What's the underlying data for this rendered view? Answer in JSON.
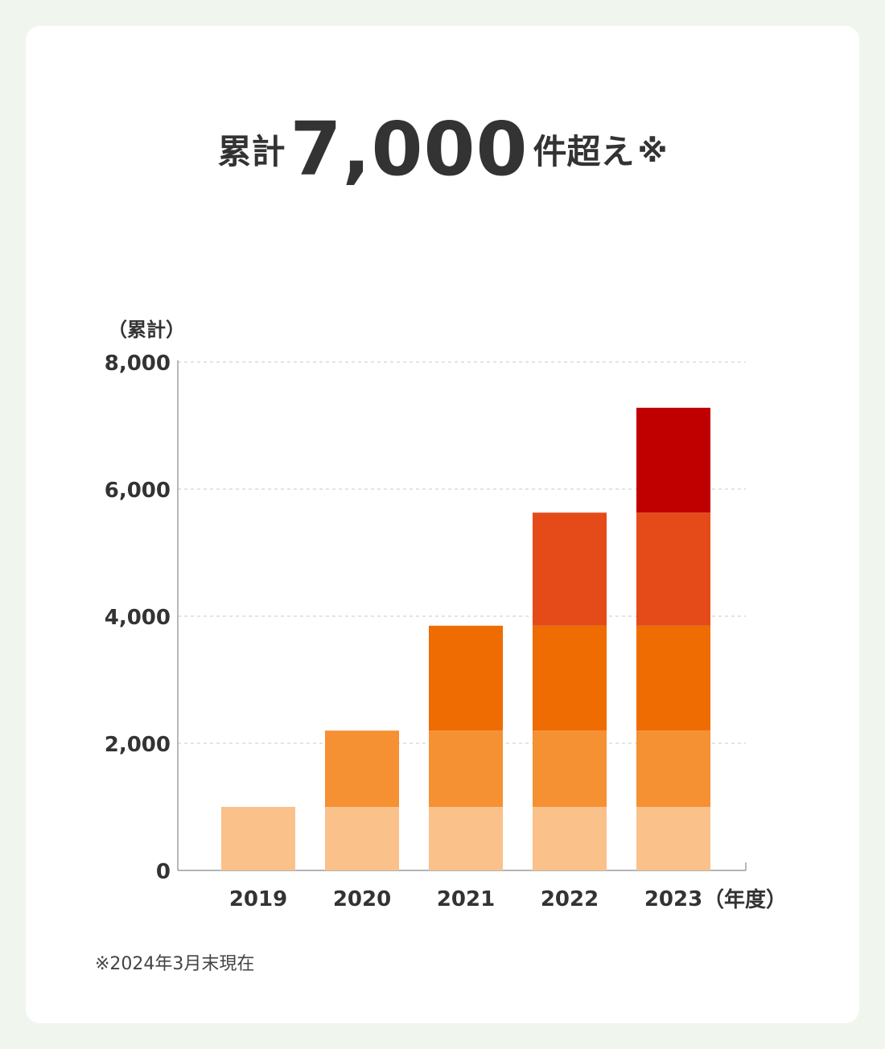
{
  "headline": {
    "prefix": "累計",
    "number": "7,000",
    "suffix": "件超え",
    "mark": "※"
  },
  "footnote": "※2024年3月末現在",
  "chart_data": {
    "type": "bar",
    "stacked": true,
    "ylabel": "（累計）",
    "xlabel_unit": "（年度）",
    "categories": [
      "2019",
      "2020",
      "2021",
      "2022",
      "2023"
    ],
    "yticks": [
      "0",
      "2,000",
      "4,000",
      "6,000",
      "8,000"
    ],
    "ylim": [
      0,
      8000
    ],
    "grid": true,
    "series": [
      {
        "values": [
          1000,
          1000,
          1000,
          1000,
          1000
        ],
        "color": "#fac18b"
      },
      {
        "values": [
          0,
          1200,
          1200,
          1200,
          1200
        ],
        "color": "#f59033"
      },
      {
        "values": [
          0,
          0,
          1650,
          1650,
          1650
        ],
        "color": "#ee6c02"
      },
      {
        "values": [
          0,
          0,
          0,
          1780,
          1780
        ],
        "color": "#e54b19"
      },
      {
        "values": [
          0,
          0,
          0,
          0,
          1650
        ],
        "color": "#c00000"
      }
    ]
  }
}
